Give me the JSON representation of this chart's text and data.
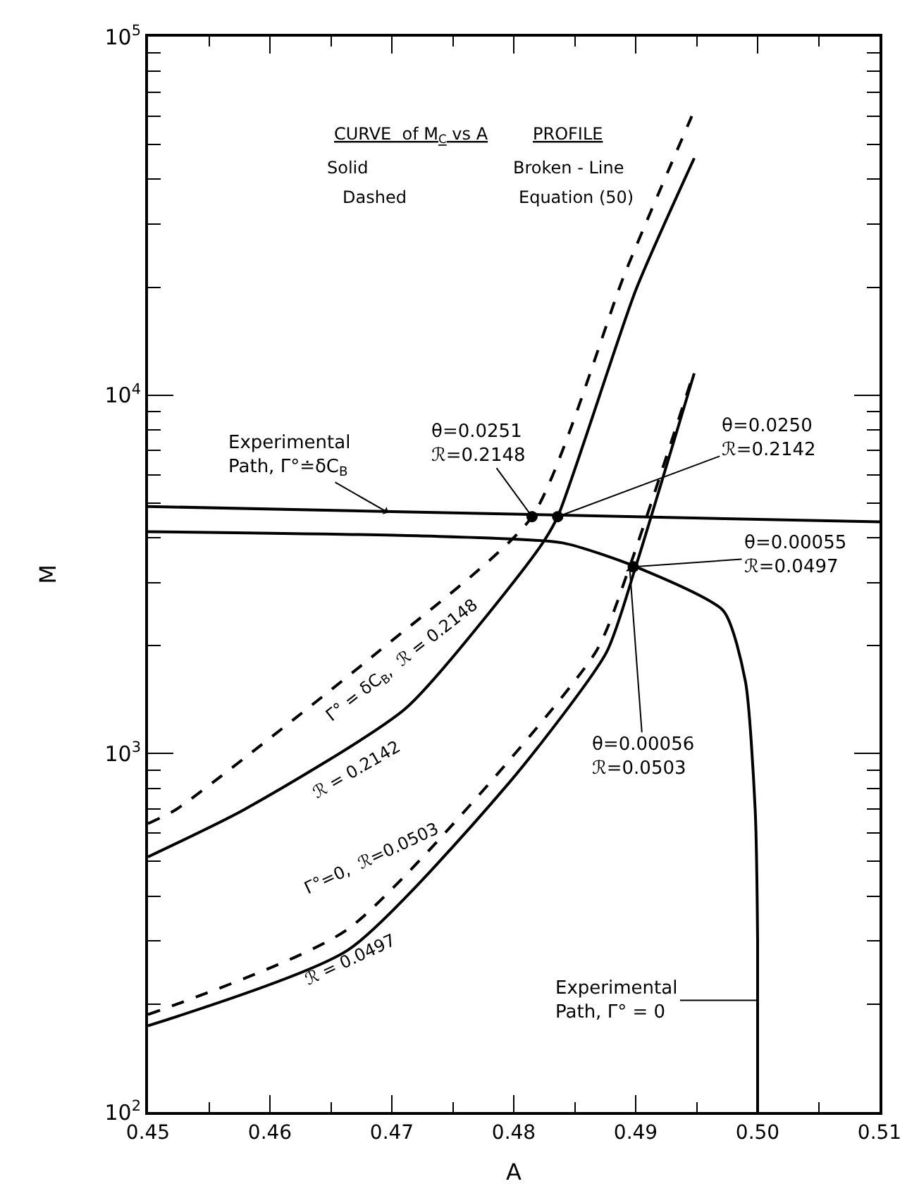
{
  "chart_data": {
    "type": "line",
    "xlabel": "A",
    "ylabel": "M",
    "xlim": [
      0.45,
      0.51
    ],
    "xticks": [
      0.45,
      0.46,
      0.47,
      0.48,
      0.49,
      {
        "value": 0.5,
        "label": "0.50"
      },
      0.51
    ],
    "ylim": [
      100,
      100000
    ],
    "yticks": [
      {
        "value": 100,
        "label": "10$^{2}$"
      },
      {
        "value": 1000,
        "label": "10$^{3}$"
      },
      {
        "value": 10000,
        "label": "10$^{4}$"
      },
      {
        "value": 100000,
        "label": "10$^{5}$"
      }
    ],
    "log": "y",
    "series": [
      {
        "color": "#000000",
        "line_style": "solid",
        "x": [
          0.45,
          0.4579,
          0.4712,
          0.4821,
          0.4836,
          0.49,
          0.4948
        ],
        "values": [
          515,
          698,
          1343,
          3750,
          4580,
          19600,
          45800
        ]
      },
      {
        "color": "#000000",
        "line_style": "dashed",
        "x": [
          0.45,
          0.4523,
          0.4688,
          0.4815,
          0.4891,
          0.4946
        ],
        "values": [
          638,
          698,
          1914,
          4580,
          21800,
          60000
        ]
      },
      {
        "color": "#000000",
        "line_style": "solid",
        "x": [
          0.45,
          0.4664,
          0.4797,
          0.4876,
          0.49,
          0.4948
        ],
        "values": [
          174,
          283,
          835,
          1914,
          3320,
          11500
        ]
      },
      {
        "color": "#000000",
        "line_style": "dashed",
        "x": [
          0.45,
          0.4664,
          0.4867,
          0.4895,
          0.4946
        ],
        "values": [
          187,
          324,
          1914,
          3320,
          11100
        ]
      },
      {
        "color": "#000000",
        "line_style": "solid",
        "x": [
          0.45,
          0.51
        ],
        "values": [
          4890,
          4430
        ]
      },
      {
        "color": "#000000",
        "line_style": "solid",
        "x": [
          0.45,
          0.4721,
          0.484,
          0.49,
          0.4972,
          0.499,
          0.4998,
          0.5,
          0.5
        ],
        "values": [
          4160,
          4050,
          3870,
          3320,
          2500,
          1590,
          698,
          300,
          100
        ]
      },
      {
        "type": "scatter",
        "marker": "circle",
        "color": "#000000",
        "x": [
          0.4815,
          0.4836,
          0.4898
        ],
        "values": [
          4580,
          4580,
          3320
        ]
      }
    ],
    "annotations": [
      {
        "text": "θ=0.0251\nℛ=0.2148",
        "x": 0.4815,
        "y": 4580
      },
      {
        "text": "θ=0.0250\nℛ=0.2142",
        "x": 0.4836,
        "y": 4580
      },
      {
        "text": "θ=0.00055\nℛ=0.0497",
        "x": 0.4898,
        "y": 3320
      },
      {
        "text": "θ=0.00056\nℛ=0.0503",
        "x": 0.4895,
        "y": 3320
      },
      {
        "text": "Experimental\nPath, Γ°≐δC$_{B}$",
        "x": 0.4697,
        "y": 4700
      },
      "Experimental\nPath, Γ° = 0",
      "Γ° = δC$_{B}$,  ℛ = 0.2148",
      "ℛ = 0.2142",
      "Γ°=0,  ℛ=0.0503",
      "ℛ = 0.0497",
      "CURVE  of M$_{C}$ vs A",
      "PROFILE",
      "Solid",
      "Broken - Line",
      "Dashed",
      "Equation (50)"
    ]
  }
}
